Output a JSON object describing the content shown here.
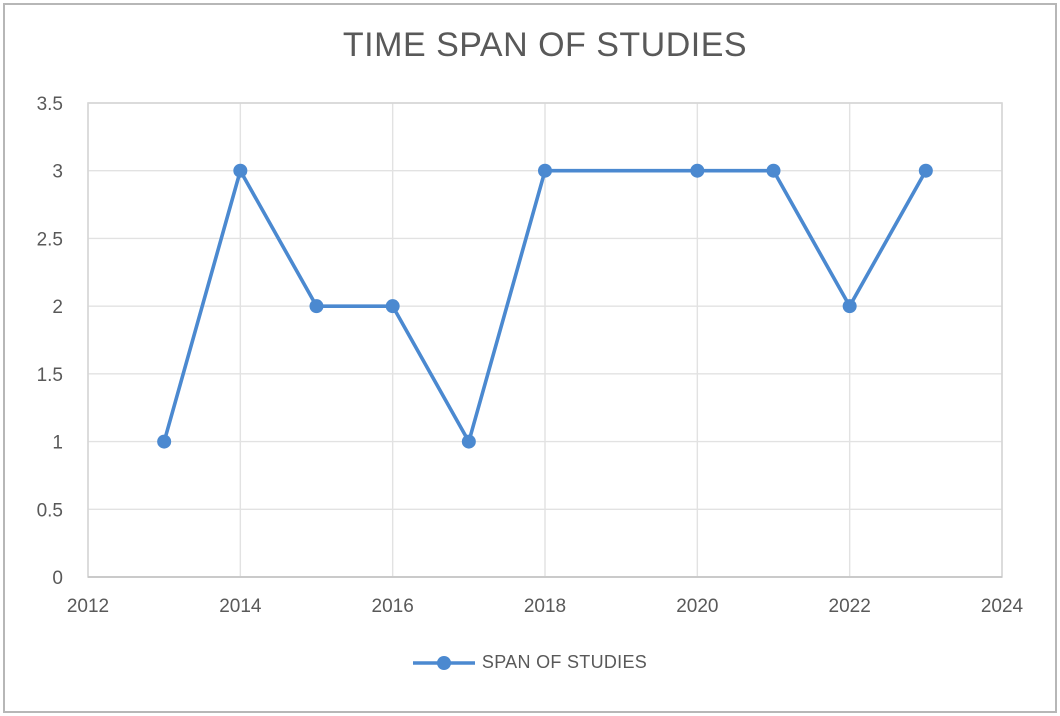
{
  "chart_data": {
    "type": "line",
    "title": "TIME SPAN OF STUDIES",
    "xlabel": "",
    "ylabel": "",
    "xlim": [
      2012,
      2024
    ],
    "ylim": [
      0,
      3.5
    ],
    "x_ticks": [
      2012,
      2014,
      2016,
      2018,
      2020,
      2022,
      2024
    ],
    "y_ticks": [
      0,
      0.5,
      1,
      1.5,
      2,
      2.5,
      3,
      3.5
    ],
    "grid": true,
    "legend_position": "bottom",
    "series": [
      {
        "name": "SPAN OF STUDIES",
        "marker": "circle",
        "points": [
          [
            2013,
            1
          ],
          [
            2014,
            3
          ],
          [
            2015,
            2
          ],
          [
            2016,
            2
          ],
          [
            2017,
            1
          ],
          [
            2018,
            3
          ],
          [
            2020,
            3
          ],
          [
            2021,
            3
          ],
          [
            2022,
            2
          ],
          [
            2023,
            3
          ]
        ]
      }
    ]
  },
  "colors": {
    "line": "#4b89d0",
    "gridline": "#e2e2e2",
    "plot_border": "#d6d6d6",
    "axis_line": "#c3c3c3",
    "text": "#595959",
    "outer_frame": "#b7b7b7",
    "background": "#ffffff"
  }
}
